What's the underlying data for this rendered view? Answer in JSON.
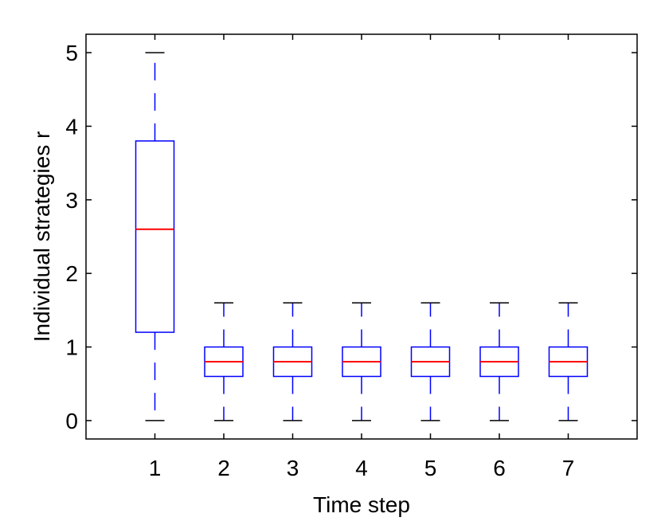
{
  "chart_data": {
    "type": "box",
    "xlabel": "Time step",
    "ylabel": "Individual strategies r",
    "categories": [
      "1",
      "2",
      "3",
      "4",
      "5",
      "6",
      "7"
    ],
    "yticks": [
      0,
      1,
      2,
      3,
      4,
      5
    ],
    "ylim": [
      -0.25,
      5.25
    ],
    "xlim": [
      0,
      8
    ],
    "grid": false,
    "boxes": [
      {
        "category": "1",
        "min": 0,
        "q1": 1.2,
        "median": 2.6,
        "q3": 3.8,
        "max": 5.0
      },
      {
        "category": "2",
        "min": 0,
        "q1": 0.6,
        "median": 0.8,
        "q3": 1.0,
        "max": 1.6
      },
      {
        "category": "3",
        "min": 0,
        "q1": 0.6,
        "median": 0.8,
        "q3": 1.0,
        "max": 1.6
      },
      {
        "category": "4",
        "min": 0,
        "q1": 0.6,
        "median": 0.8,
        "q3": 1.0,
        "max": 1.6
      },
      {
        "category": "5",
        "min": 0,
        "q1": 0.6,
        "median": 0.8,
        "q3": 1.0,
        "max": 1.6
      },
      {
        "category": "6",
        "min": 0,
        "q1": 0.6,
        "median": 0.8,
        "q3": 1.0,
        "max": 1.6
      },
      {
        "category": "7",
        "min": 0,
        "q1": 0.6,
        "median": 0.8,
        "q3": 1.0,
        "max": 1.6
      }
    ],
    "colors": {
      "box": "#0000ff",
      "median": "#ff0000",
      "whisker_cap": "#000000",
      "axes": "#000000"
    }
  }
}
